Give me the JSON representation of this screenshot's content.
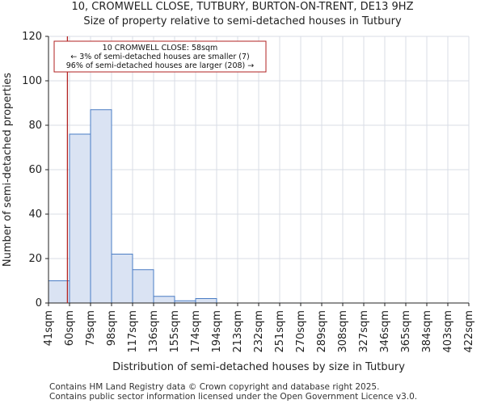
{
  "title_line1": "10, CROMWELL CLOSE, TUTBURY, BURTON-ON-TRENT, DE13 9HZ",
  "title_line2": "Size of property relative to semi-detached houses in Tutbury",
  "footer_line1": "Contains HM Land Registry data © Crown copyright and database right 2025.",
  "footer_line2": "Contains public sector information licensed under the Open Government Licence v3.0.",
  "colors": {
    "bar_fill": "#dae3f3",
    "bar_stroke": "#4a7cc4",
    "marker": "#b22222",
    "grid": "#d9dce6",
    "annotation_border": "#b22222"
  },
  "chart_data": {
    "type": "bar",
    "title": "Size of property relative to semi-detached houses in Tutbury",
    "xlabel": "Distribution of semi-detached houses by size in Tutbury",
    "ylabel": "Number of semi-detached properties",
    "bin_edges": [
      "41sqm",
      "60sqm",
      "79sqm",
      "98sqm",
      "117sqm",
      "136sqm",
      "155sqm",
      "174sqm",
      "194sqm",
      "213sqm",
      "232sqm",
      "251sqm",
      "270sqm",
      "289sqm",
      "308sqm",
      "327sqm",
      "346sqm",
      "365sqm",
      "384sqm",
      "403sqm",
      "422sqm"
    ],
    "values": [
      10,
      76,
      87,
      22,
      15,
      3,
      1,
      2,
      0,
      0,
      0,
      0,
      0,
      0,
      0,
      0,
      0,
      0,
      0,
      0
    ],
    "ylim": [
      0,
      120
    ],
    "yticks": [
      0,
      20,
      40,
      60,
      80,
      100,
      120
    ],
    "grid": true,
    "marker_value_bins": 0.9,
    "annotation": {
      "line1": "10 CROMWELL CLOSE: 58sqm",
      "line2": "← 3% of semi-detached houses are smaller (7)",
      "line3": "96% of semi-detached houses are larger (208) →"
    }
  }
}
